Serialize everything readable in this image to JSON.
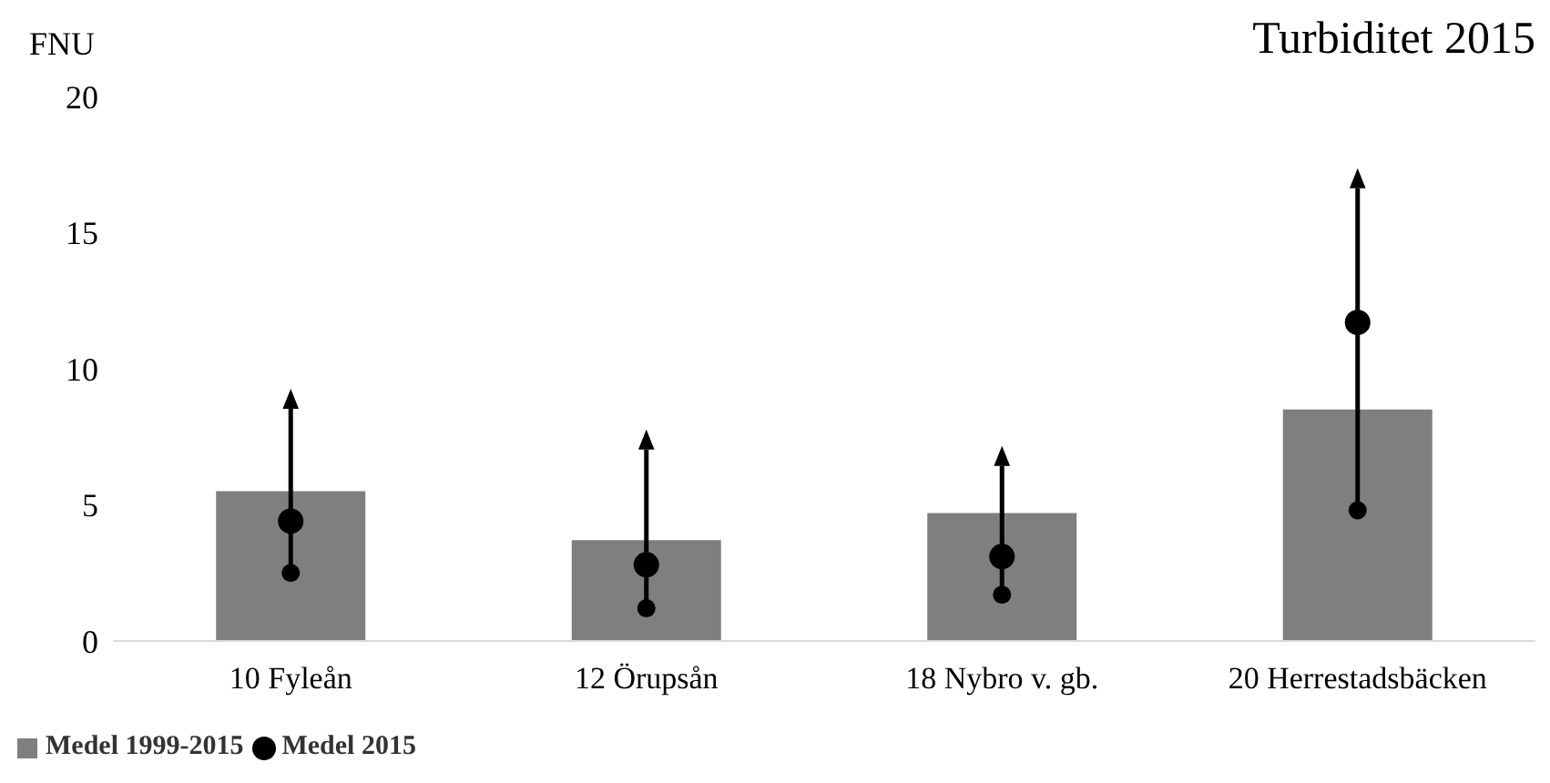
{
  "chart_data": {
    "type": "bar",
    "title": "Turbiditet 2015",
    "ylabel": "FNU",
    "categories": [
      "10 Fyleån",
      "12 Örupsån",
      "18 Nybro v. gb.",
      "20 Herrestadsbäcken"
    ],
    "series": [
      {
        "name": "Medel 1999-2015",
        "type": "bar",
        "color": "#7f7f7f",
        "values": [
          5.5,
          3.7,
          4.7,
          8.5
        ]
      },
      {
        "type": "scatter",
        "color": "#000000",
        "marker": "circle",
        "values": [
          2.5,
          1.2,
          1.7,
          4.8
        ]
      },
      {
        "type": "scatter",
        "color": "#000000",
        "marker": "triangle",
        "values": [
          8.9,
          7.4,
          6.8,
          17.0
        ]
      },
      {
        "name": "Medel 2015",
        "type": "scatter",
        "color": "#000000",
        "marker": "circle",
        "values": [
          4.4,
          2.8,
          3.1,
          11.7
        ]
      }
    ],
    "ylim": [
      0,
      20
    ],
    "yticks": [
      0,
      5,
      10,
      15,
      20
    ],
    "legend": "bottom left"
  }
}
